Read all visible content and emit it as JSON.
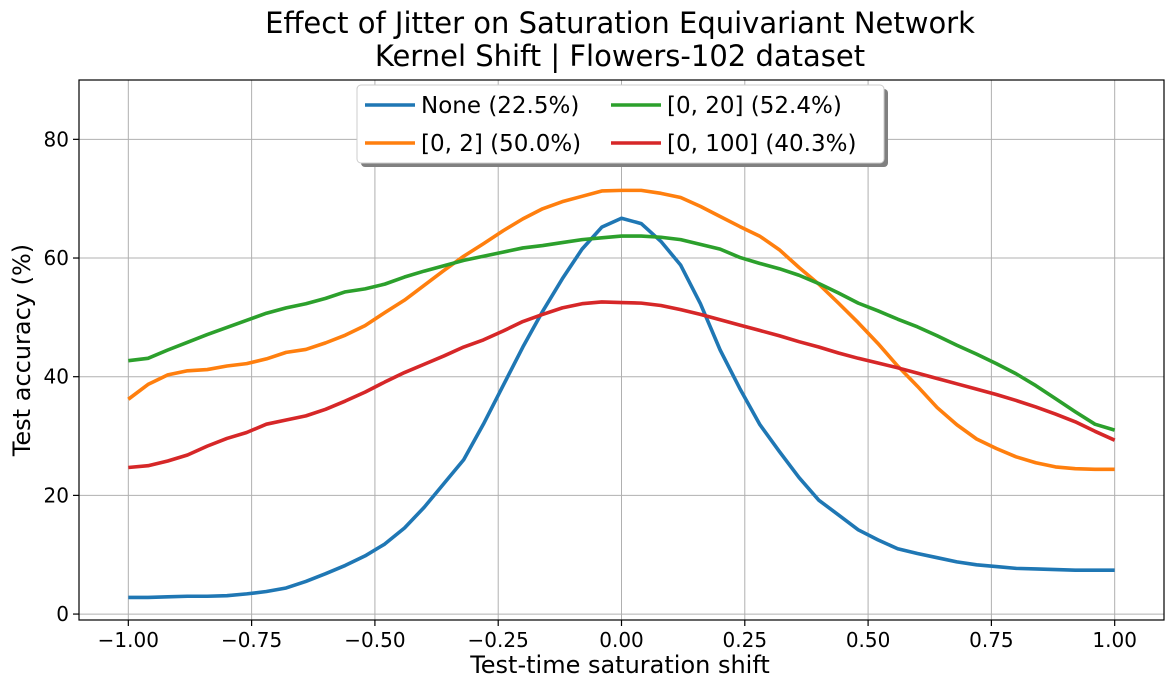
{
  "chart_data": {
    "type": "line",
    "title": [
      "Effect of Jitter on Saturation Equivariant Network",
      "Kernel Shift | Flowers-102 dataset"
    ],
    "xlabel": "Test-time saturation shift",
    "ylabel": "Test accuracy (%)",
    "xlim": [
      -1.1,
      1.1
    ],
    "ylim": [
      -1,
      90
    ],
    "xticks": [
      -1.0,
      -0.75,
      -0.5,
      -0.25,
      0.0,
      0.25,
      0.5,
      0.75,
      1.0
    ],
    "xtick_labels": [
      "−1.00",
      "−0.75",
      "−0.50",
      "−0.25",
      "0.00",
      "0.25",
      "0.50",
      "0.75",
      "1.00"
    ],
    "yticks": [
      0,
      20,
      40,
      60,
      80
    ],
    "ytick_labels": [
      "0",
      "20",
      "40",
      "60",
      "80"
    ],
    "grid": true,
    "legend": {
      "placement": "upper center",
      "columns": 2
    },
    "x": [
      -1.0,
      -0.96,
      -0.92,
      -0.88,
      -0.84,
      -0.8,
      -0.76,
      -0.72,
      -0.68,
      -0.64,
      -0.6,
      -0.56,
      -0.52,
      -0.48,
      -0.44,
      -0.4,
      -0.36,
      -0.32,
      -0.28,
      -0.24,
      -0.2,
      -0.16,
      -0.12,
      -0.08,
      -0.04,
      0.0,
      0.04,
      0.08,
      0.12,
      0.16,
      0.2,
      0.24,
      0.28,
      0.32,
      0.36,
      0.4,
      0.44,
      0.48,
      0.52,
      0.56,
      0.6,
      0.64,
      0.68,
      0.72,
      0.76,
      0.8,
      0.84,
      0.88,
      0.92,
      0.96,
      1.0
    ],
    "series": [
      {
        "name": "None (22.5%)",
        "color": "#1f77b4",
        "values": [
          2.8,
          2.8,
          2.9,
          3.0,
          3.0,
          3.1,
          3.4,
          3.8,
          4.4,
          5.5,
          6.8,
          8.2,
          9.8,
          11.8,
          14.5,
          18.0,
          22.0,
          26.0,
          32.0,
          38.5,
          45.0,
          51.0,
          56.5,
          61.5,
          65.2,
          66.7,
          65.8,
          62.8,
          58.8,
          52.3,
          44.5,
          38.0,
          32.0,
          27.4,
          23.0,
          19.2,
          16.7,
          14.2,
          12.5,
          11.0,
          10.2,
          9.5,
          8.8,
          8.3,
          8.0,
          7.7,
          7.6,
          7.5,
          7.4,
          7.4,
          7.4
        ]
      },
      {
        "name": "[0, 2] (50.0%)",
        "color": "#ff7f0e",
        "values": [
          36.2,
          38.7,
          40.3,
          41.0,
          41.2,
          41.8,
          42.2,
          43.0,
          44.1,
          44.6,
          45.7,
          47.0,
          48.6,
          50.8,
          52.9,
          55.4,
          57.9,
          60.3,
          62.4,
          64.6,
          66.6,
          68.3,
          69.5,
          70.4,
          71.3,
          71.4,
          71.4,
          70.9,
          70.2,
          68.7,
          67.0,
          65.3,
          63.7,
          61.4,
          58.4,
          55.6,
          52.4,
          49.1,
          45.6,
          41.8,
          38.4,
          34.8,
          31.9,
          29.5,
          27.9,
          26.5,
          25.5,
          24.8,
          24.5,
          24.4,
          24.4
        ]
      },
      {
        "name": "[0, 20] (52.4%)",
        "color": "#2ca02c",
        "values": [
          42.7,
          43.1,
          44.5,
          45.8,
          47.1,
          48.3,
          49.5,
          50.7,
          51.6,
          52.3,
          53.2,
          54.3,
          54.8,
          55.6,
          56.8,
          57.8,
          58.7,
          59.6,
          60.3,
          61.0,
          61.7,
          62.1,
          62.6,
          63.1,
          63.4,
          63.7,
          63.7,
          63.5,
          63.1,
          62.3,
          61.5,
          60.1,
          59.1,
          58.2,
          57.1,
          55.7,
          54.1,
          52.4,
          51.1,
          49.7,
          48.4,
          46.9,
          45.3,
          43.8,
          42.2,
          40.5,
          38.5,
          36.3,
          34.1,
          32.0,
          31.0
        ]
      },
      {
        "name": "[0, 100] (40.3%)",
        "color": "#d62728",
        "values": [
          24.7,
          25.0,
          25.8,
          26.8,
          28.3,
          29.6,
          30.6,
          32.0,
          32.7,
          33.4,
          34.5,
          35.9,
          37.4,
          39.1,
          40.7,
          42.1,
          43.5,
          45.0,
          46.2,
          47.7,
          49.3,
          50.5,
          51.6,
          52.3,
          52.6,
          52.5,
          52.4,
          52.0,
          51.3,
          50.5,
          49.6,
          48.7,
          47.8,
          46.9,
          45.9,
          45.0,
          44.0,
          43.1,
          42.3,
          41.5,
          40.6,
          39.7,
          38.8,
          37.9,
          37.0,
          36.0,
          34.9,
          33.7,
          32.4,
          30.8,
          29.3
        ]
      }
    ]
  }
}
